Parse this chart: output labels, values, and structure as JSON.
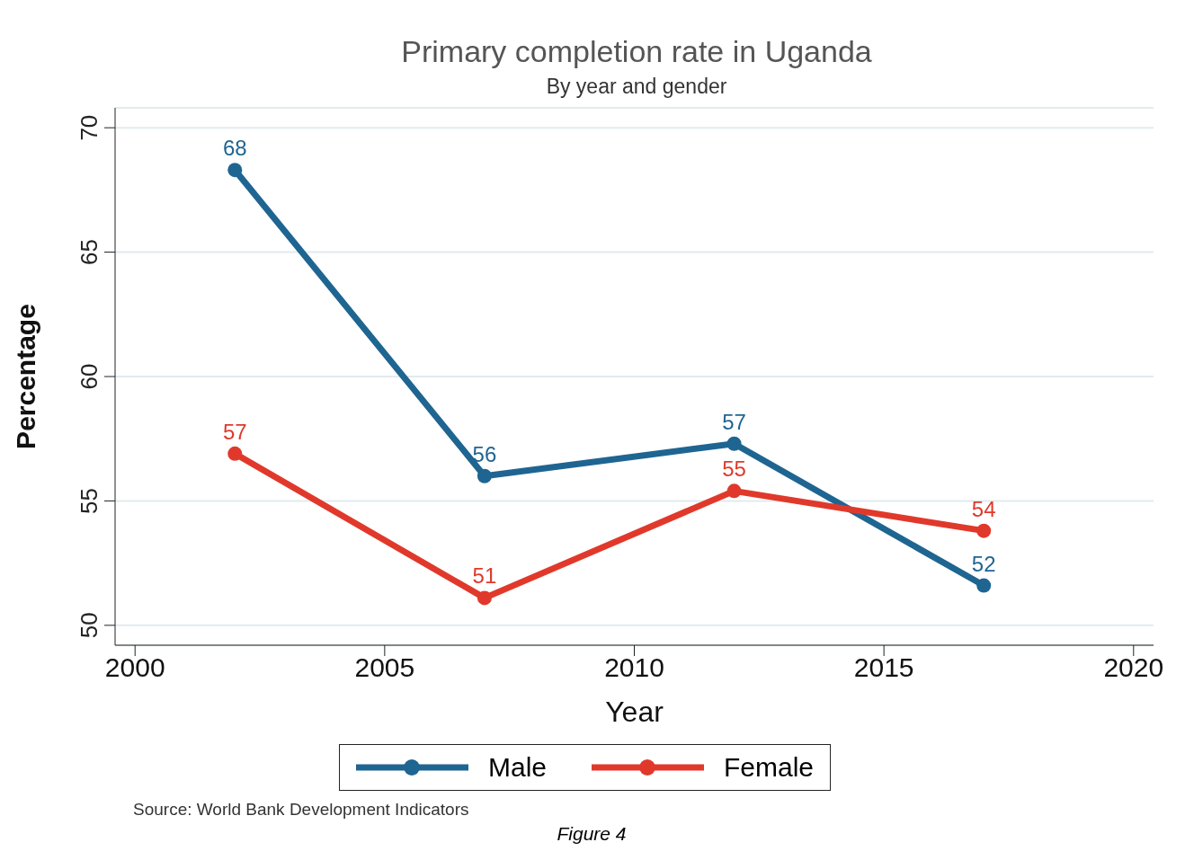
{
  "chart_data": {
    "type": "line",
    "title": "Primary completion rate in Uganda",
    "subtitle": "By year and gender",
    "xlabel": "Year",
    "ylabel": "Percentage",
    "x": [
      2002,
      2007,
      2012,
      2017
    ],
    "series": [
      {
        "name": "Male",
        "color": "#1f6591",
        "values": [
          68.3,
          56.0,
          57.3,
          51.6
        ],
        "value_labels": [
          "68",
          "56",
          "57",
          "52"
        ]
      },
      {
        "name": "Female",
        "color": "#e0392b",
        "values": [
          56.9,
          51.1,
          55.4,
          53.8
        ],
        "value_labels": [
          "57",
          "51",
          "55",
          "54"
        ]
      }
    ],
    "xlim": [
      1999.6,
      2020.4
    ],
    "xticks": [
      2000,
      2005,
      2010,
      2015,
      2020
    ],
    "ylim": [
      49.2,
      70.8
    ],
    "yticks": [
      50,
      55,
      60,
      65,
      70
    ],
    "grid": "y",
    "legend": "bottom",
    "marker": "circle",
    "line_style": "solid",
    "annotations": [
      "Source: World Bank Development Indicators",
      "Figure 4"
    ]
  }
}
